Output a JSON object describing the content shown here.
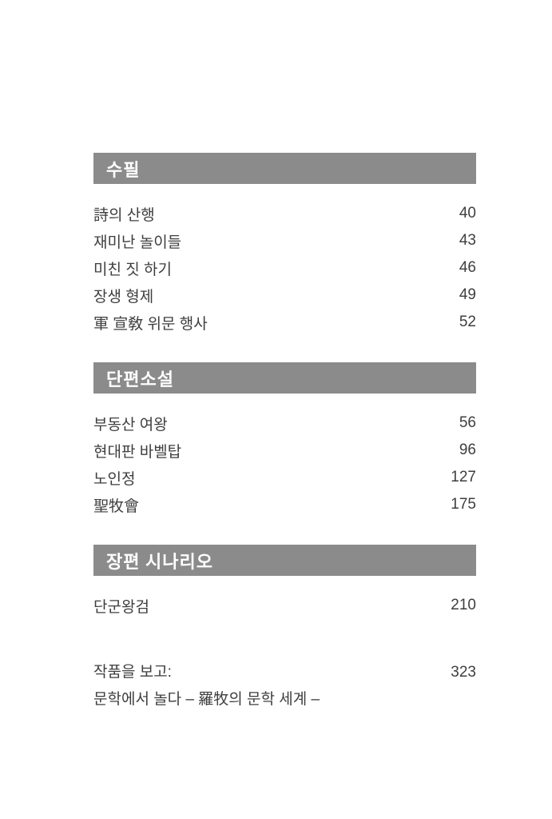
{
  "colors": {
    "header_bar": "#8b8b8b",
    "header_text": "#ffffff",
    "body_text": "#3e3e3e",
    "page_background": "#ffffff"
  },
  "toc": {
    "sections": [
      {
        "header": "수필",
        "items": [
          {
            "title": "詩의 산행",
            "page": "40"
          },
          {
            "title": "재미난 놀이들",
            "page": "43"
          },
          {
            "title": "미친 짓 하기",
            "page": "46"
          },
          {
            "title": "장생 형제",
            "page": "49"
          },
          {
            "title": "軍 宣敎 위문 행사",
            "page": "52"
          }
        ]
      },
      {
        "header": "단편소설",
        "items": [
          {
            "title": "부동산 여왕",
            "page": "56"
          },
          {
            "title": "현대판 바벨탑",
            "page": "96"
          },
          {
            "title": "노인정",
            "page": "127"
          },
          {
            "title": "聖牧會",
            "page": "175"
          }
        ]
      },
      {
        "header": "장편 시나리오",
        "items": [
          {
            "title": "단군왕검",
            "page": "210"
          }
        ]
      }
    ],
    "footer": {
      "title": "작품을 보고:",
      "page": "323",
      "subtitle": "문학에서 놀다 – 羅牧의 문학 세계 –"
    }
  }
}
